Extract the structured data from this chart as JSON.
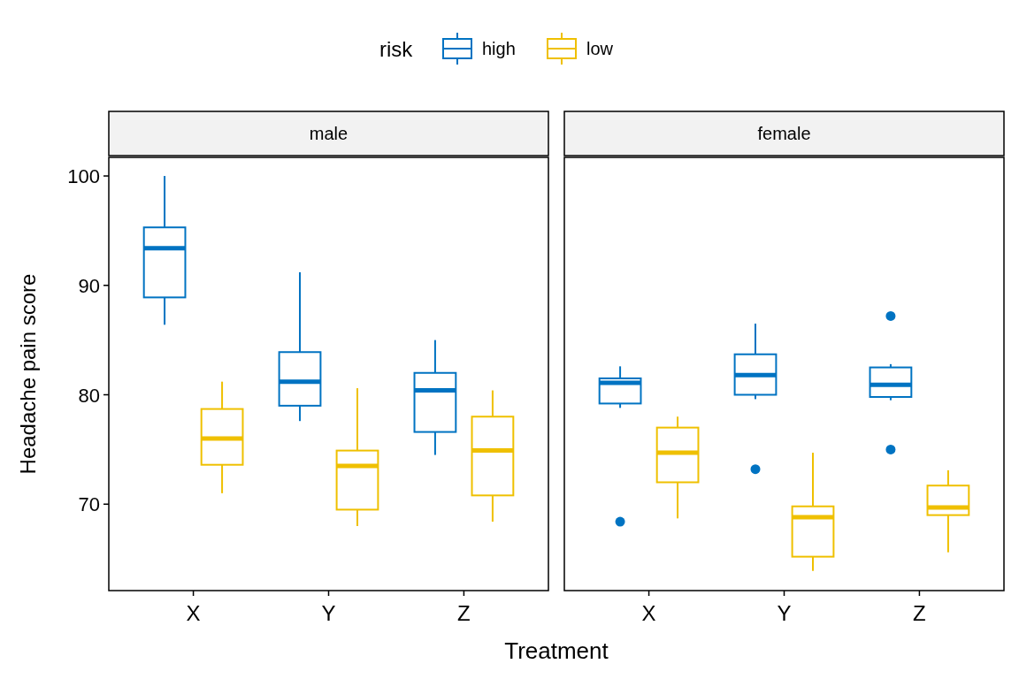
{
  "chart_data": [
    {
      "type": "box",
      "title": "male",
      "xlabel": "Treatment",
      "ylabel": "Headache pain score",
      "legend_title": "risk",
      "legend": "top",
      "categories": [
        "X",
        "Y",
        "Z"
      ],
      "ylim": [
        62.1,
        101.7
      ],
      "yticks": [
        70,
        80,
        90,
        100
      ],
      "grid": false,
      "series": [
        {
          "name": "high",
          "color": "#0073c2",
          "boxes": [
            {
              "low": 86.4,
              "q1": 88.9,
              "median": 93.4,
              "q3": 95.3,
              "high": 100
            },
            {
              "low": 77.6,
              "q1": 79.0,
              "median": 81.2,
              "q3": 83.9,
              "high": 91.2
            },
            {
              "low": 74.5,
              "q1": 76.6,
              "median": 80.4,
              "q3": 82.0,
              "high": 85.0
            }
          ]
        },
        {
          "name": "low",
          "color": "#efc000",
          "boxes": [
            {
              "low": 71.0,
              "q1": 73.6,
              "median": 76.0,
              "q3": 78.7,
              "high": 81.2
            },
            {
              "low": 68.0,
              "q1": 69.5,
              "median": 73.5,
              "q3": 74.9,
              "high": 80.6
            },
            {
              "low": 68.4,
              "q1": 70.8,
              "median": 74.9,
              "q3": 78.0,
              "high": 80.4
            }
          ]
        }
      ]
    },
    {
      "type": "box",
      "title": "female",
      "categories": [
        "X",
        "Y",
        "Z"
      ],
      "ylim": [
        62.1,
        101.7
      ],
      "tick_labels": "x",
      "grid": false,
      "series": [
        {
          "color": "#0073c2",
          "boxes": [
            {
              "low": 78.8,
              "q1": 79.2,
              "median": 81.1,
              "q3": 81.5,
              "high": 82.6,
              "outliers": [
                68.4
              ]
            },
            {
              "low": 79.6,
              "q1": 80.0,
              "median": 81.8,
              "q3": 83.7,
              "high": 86.5,
              "outliers": [
                73.2
              ]
            },
            {
              "low": 79.5,
              "q1": 79.8,
              "median": 80.9,
              "q3": 82.5,
              "high": 82.8,
              "outliers": [
                87.2,
                75.0
              ]
            }
          ]
        },
        {
          "color": "#efc000",
          "boxes": [
            {
              "low": 68.7,
              "q1": 72.0,
              "median": 74.7,
              "q3": 77.0,
              "high": 78.0
            },
            {
              "low": 63.9,
              "q1": 65.2,
              "median": 68.8,
              "q3": 69.8,
              "high": 74.7
            },
            {
              "low": 65.6,
              "q1": 69.0,
              "median": 69.7,
              "q3": 71.7,
              "high": 73.1
            }
          ]
        }
      ]
    }
  ]
}
